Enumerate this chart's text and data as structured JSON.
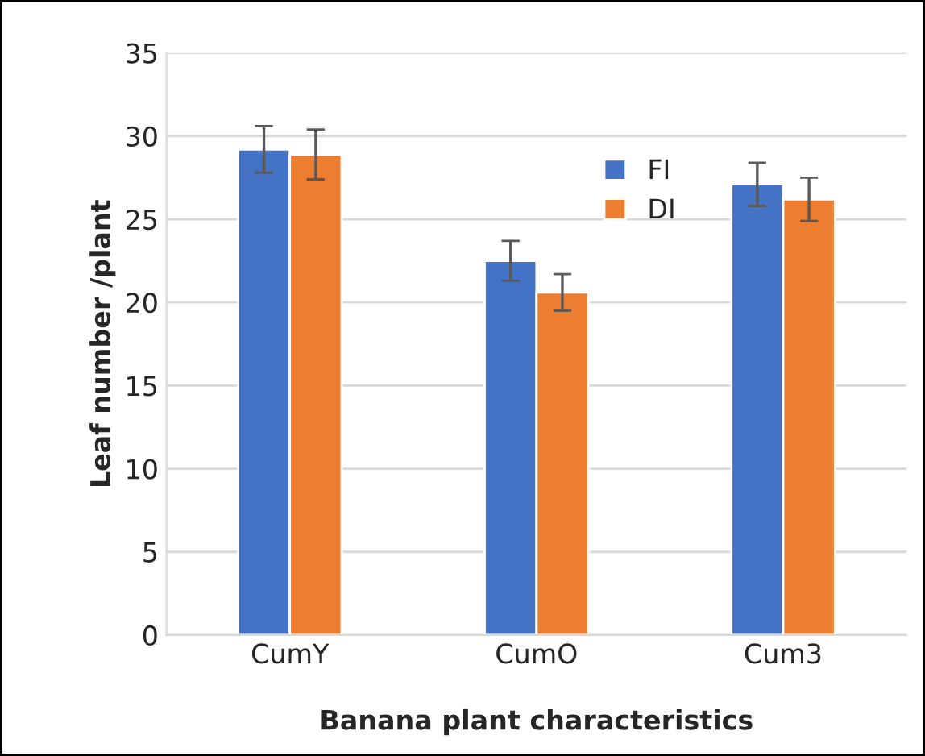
{
  "chart_data": {
    "type": "bar",
    "xlabel": "Banana plant characteristics",
    "ylabel": "Leaf number /plant",
    "categories": [
      "CumY",
      "CumO",
      "Cum3"
    ],
    "series": [
      {
        "name": "FI",
        "color": "#4472c4",
        "values": [
          29.2,
          22.5,
          27.1
        ],
        "errors": [
          1.4,
          1.2,
          1.3
        ]
      },
      {
        "name": "DI",
        "color": "#ed7d31",
        "values": [
          28.9,
          20.6,
          26.2
        ],
        "errors": [
          1.5,
          1.1,
          1.3
        ]
      }
    ],
    "ylim": [
      0,
      35
    ],
    "yticks": [
      0,
      5,
      10,
      15,
      20,
      25,
      30,
      35
    ],
    "grid": "y",
    "legend": "top right"
  }
}
